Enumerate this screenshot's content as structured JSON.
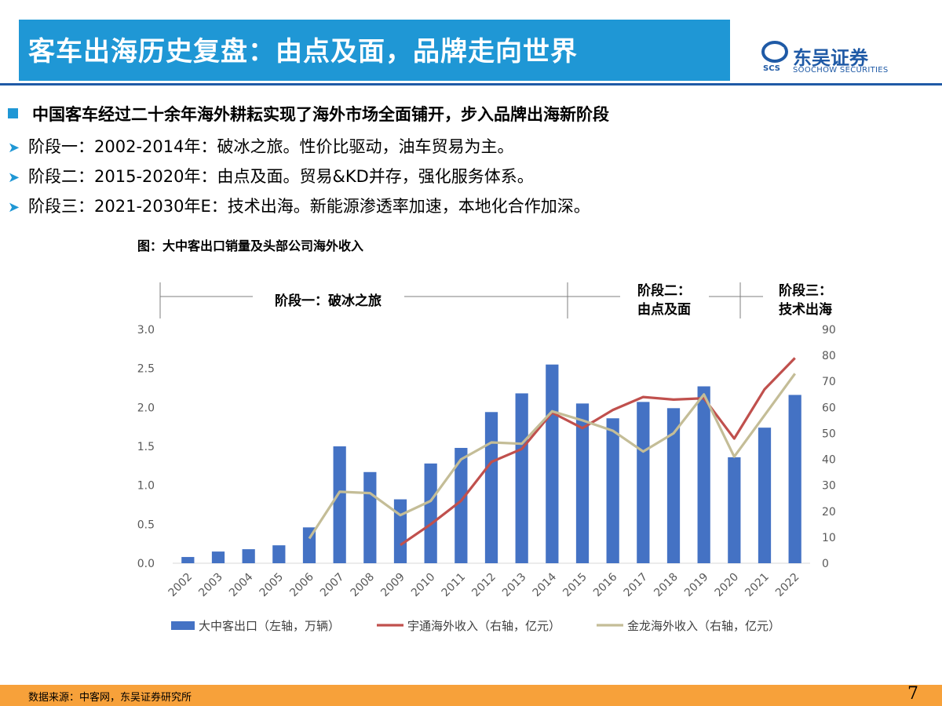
{
  "header": {
    "title": "客车出海历史复盘：由点及面，品牌走向世界",
    "logo_cn": "东吴证券",
    "logo_en": "SOOCHOW SECURITIES",
    "logo_mark": "SCS",
    "title_bg": "#1f97d5",
    "brand_color": "#1f5aa6"
  },
  "bullets": {
    "main": "中国客车经过二十余年海外耕耘实现了海外市场全面铺开，步入品牌出海新阶段",
    "items": [
      "阶段一：2002-2014年：破冰之旅。性价比驱动，油车贸易为主。",
      "阶段二：2015-2020年：由点及面。贸易&KD并存，强化服务体系。",
      "阶段三：2021-2030年E：技术出海。新能源渗透率加速，本地化合作加深。"
    ]
  },
  "figure": {
    "title": "图：大中客出口销量及头部公司海外收入",
    "stage1": "阶段一：破冰之旅",
    "stage2_line1": "阶段二：",
    "stage2_line2": "由点及面",
    "stage3_line1": "阶段三：",
    "stage3_line2": "技术出海"
  },
  "chart_data": {
    "type": "bar",
    "categories": [
      "2002",
      "2003",
      "2004",
      "2005",
      "2006",
      "2007",
      "2008",
      "2009",
      "2010",
      "2011",
      "2012",
      "2013",
      "2014",
      "2015",
      "2016",
      "2017",
      "2018",
      "2019",
      "2020",
      "2021",
      "2022"
    ],
    "series": [
      {
        "name": "大中客出口（左轴，万辆）",
        "type": "bar",
        "axis": "left",
        "color": "#4472c4",
        "values": [
          0.08,
          0.15,
          0.18,
          0.23,
          0.46,
          1.5,
          1.17,
          0.82,
          1.28,
          1.48,
          1.94,
          2.18,
          2.55,
          2.05,
          1.86,
          2.07,
          1.99,
          2.27,
          1.36,
          1.74,
          2.16
        ]
      },
      {
        "name": "宇通海外收入（右轴，亿元）",
        "type": "line",
        "axis": "right",
        "color": "#c0504d",
        "values": [
          null,
          null,
          null,
          null,
          null,
          null,
          null,
          7,
          15,
          24,
          39,
          44,
          58,
          52,
          59,
          64,
          63,
          63.5,
          48,
          67,
          79
        ]
      },
      {
        "name": "金龙海外收入（右轴，亿元）",
        "type": "line",
        "axis": "right",
        "color": "#c4bd97",
        "values": [
          null,
          null,
          null,
          null,
          9.5,
          27.5,
          27,
          18.5,
          24,
          40,
          46.5,
          46,
          58.5,
          55,
          51,
          43,
          50,
          65,
          41,
          57,
          73
        ]
      }
    ],
    "left_axis": {
      "min": 0,
      "max": 3.0,
      "ticks": [
        "0.0",
        "0.5",
        "1.0",
        "1.5",
        "2.0",
        "2.5",
        "3.0"
      ]
    },
    "right_axis": {
      "min": 0,
      "max": 90,
      "ticks": [
        "0",
        "10",
        "20",
        "30",
        "40",
        "50",
        "60",
        "70",
        "80",
        "90"
      ]
    },
    "legend_position": "bottom",
    "grid": false
  },
  "footer": {
    "source": "数据来源：中客网，东吴证券研究所",
    "page": "7",
    "bar_color": "#f7a13a"
  }
}
